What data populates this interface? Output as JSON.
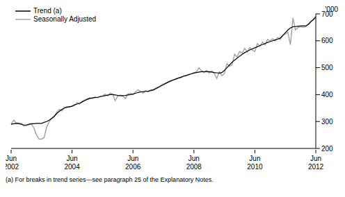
{
  "chart_data": {
    "type": "line",
    "ylabel": "'000",
    "annotations": [
      "(a) For breaks in trend series—see paragraph 25 of the Explanatory Notes."
    ],
    "legend": "upper left",
    "grid": false,
    "ylim": [
      200,
      700
    ],
    "yticks": [
      200,
      300,
      400,
      500,
      600,
      700
    ],
    "categories": [
      "Jun 2002",
      null,
      null,
      null,
      null,
      null,
      null,
      null,
      null,
      null,
      null,
      null,
      null,
      null,
      null,
      null,
      null,
      null,
      null,
      null,
      null,
      null,
      null,
      null,
      "Jun 2004",
      null,
      null,
      null,
      null,
      null,
      null,
      null,
      null,
      null,
      null,
      null,
      null,
      null,
      null,
      null,
      null,
      null,
      null,
      null,
      null,
      null,
      null,
      null,
      "Jun 2006",
      null,
      null,
      null,
      null,
      null,
      null,
      null,
      null,
      null,
      null,
      null,
      null,
      null,
      null,
      null,
      null,
      null,
      null,
      null,
      null,
      null,
      null,
      null,
      "Jun 2008",
      null,
      null,
      null,
      null,
      null,
      null,
      null,
      null,
      null,
      null,
      null,
      null,
      null,
      null,
      null,
      null,
      null,
      null,
      null,
      null,
      null,
      null,
      null,
      "Jun 2010",
      null,
      null,
      null,
      null,
      null,
      null,
      null,
      null,
      null,
      null,
      null,
      null,
      null,
      null,
      null,
      null,
      null,
      null,
      null,
      null,
      null,
      null,
      null,
      "Jun 2012"
    ],
    "series": [
      {
        "name": "Trend (a)",
        "color": "#000000",
        "line_style": "solid",
        "values": [
          290,
          292,
          293,
          292,
          290,
          287,
          287,
          290,
          292,
          292,
          293,
          293,
          293,
          297,
          300,
          305,
          312,
          320,
          330,
          338,
          345,
          350,
          353,
          355,
          357,
          362,
          365,
          368,
          373,
          378,
          382,
          386,
          388,
          389,
          390,
          392,
          394,
          396,
          398,
          400,
          400,
          399,
          397,
          396,
          396,
          397,
          399,
          400,
          402,
          405,
          408,
          410,
          411,
          412,
          413,
          415,
          418,
          422,
          427,
          432,
          437,
          442,
          447,
          451,
          455,
          458,
          462,
          465,
          468,
          471,
          474,
          477,
          480,
          482,
          484,
          485,
          485,
          485,
          485,
          484,
          482,
          481,
          480,
          482,
          490,
          500,
          510,
          520,
          528,
          535,
          543,
          550,
          556,
          561,
          566,
          570,
          574,
          578,
          582,
          586,
          590,
          594,
          597,
          600,
          603,
          606,
          610,
          620,
          630,
          640,
          648,
          652,
          653,
          654,
          655,
          655,
          655,
          660,
          670,
          678,
          688
        ]
      },
      {
        "name": "Seasonally Adjusted",
        "color": "#a6a6a6",
        "line_style": "solid",
        "values": [
          290,
          305,
          295,
          295,
          293,
          283,
          285,
          288,
          290,
          275,
          250,
          235,
          235,
          240,
          280,
          300,
          310,
          318,
          335,
          345,
          340,
          352,
          355,
          353,
          358,
          360,
          370,
          365,
          375,
          380,
          385,
          388,
          385,
          392,
          388,
          394,
          395,
          402,
          395,
          405,
          402,
          378,
          395,
          398,
          395,
          385,
          402,
          405,
          400,
          410,
          418,
          412,
          405,
          415,
          410,
          418,
          415,
          425,
          428,
          435,
          440,
          443,
          448,
          452,
          455,
          460,
          462,
          463,
          470,
          472,
          475,
          478,
          482,
          485,
          500,
          488,
          482,
          490,
          480,
          488,
          480,
          460,
          485,
          470,
          478,
          515,
          505,
          510,
          550,
          540,
          560,
          555,
          572,
          558,
          575,
          565,
          560,
          590,
          580,
          595,
          585,
          605,
          600,
          608,
          600,
          612,
          605,
          620,
          625,
          632,
          585,
          685,
          640,
          650,
          652,
          650,
          652,
          662,
          672,
          680,
          690
        ]
      }
    ]
  }
}
